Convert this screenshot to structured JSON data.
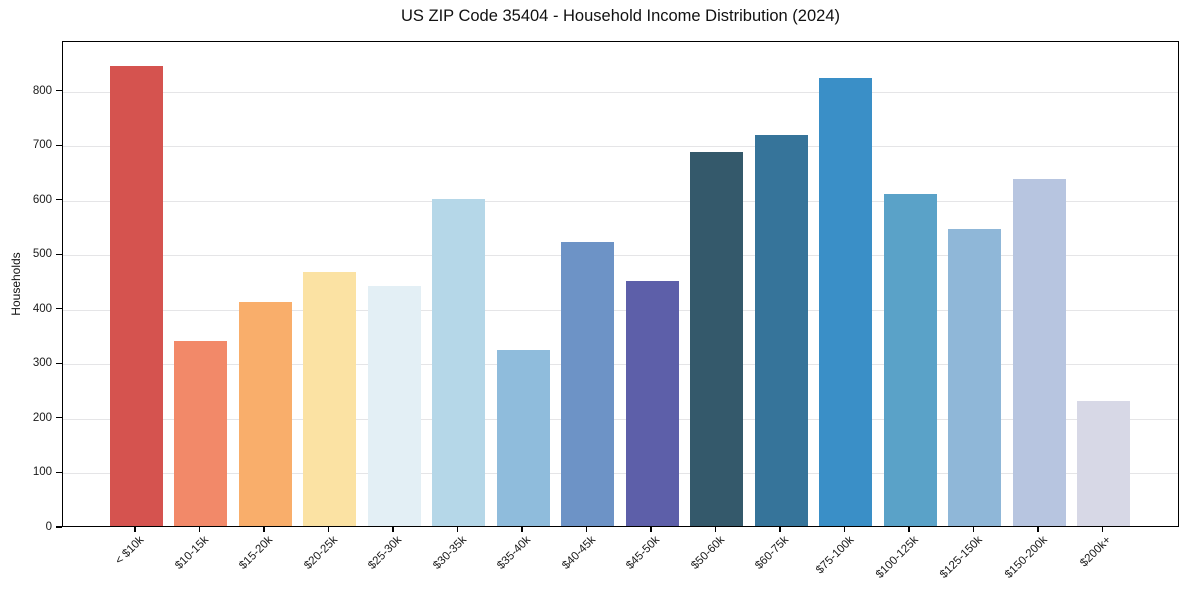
{
  "chart_data": {
    "type": "bar",
    "title": "US ZIP Code 35404 - Household Income Distribution (2024)",
    "xlabel": "",
    "ylabel": "Households",
    "categories": [
      "< $10k",
      "$10-15k",
      "$15-20k",
      "$20-25k",
      "$25-30k",
      "$30-35k",
      "$35-40k",
      "$40-45k",
      "$45-50k",
      "$50-60k",
      "$60-75k",
      "$75-100k",
      "$100-125k",
      "$125-150k",
      "$150-200k",
      "$200k+"
    ],
    "values": [
      843,
      340,
      410,
      465,
      440,
      600,
      322,
      521,
      450,
      685,
      717,
      821,
      608,
      544,
      636,
      230
    ],
    "bar_colors": [
      "#d5534f",
      "#f28969",
      "#f9ae6b",
      "#fbe2a3",
      "#e3eff5",
      "#b5d7e8",
      "#8fbcdc",
      "#6d93c6",
      "#5d5fa9",
      "#34596b",
      "#36749a",
      "#3a8fc7",
      "#5aa2c8",
      "#8fb7d8",
      "#b7c5e0",
      "#d7d8e6"
    ],
    "yticks": [
      0,
      100,
      200,
      300,
      400,
      500,
      600,
      700,
      800
    ],
    "ylim": [
      0,
      891
    ],
    "grid": true,
    "legend": false
  }
}
